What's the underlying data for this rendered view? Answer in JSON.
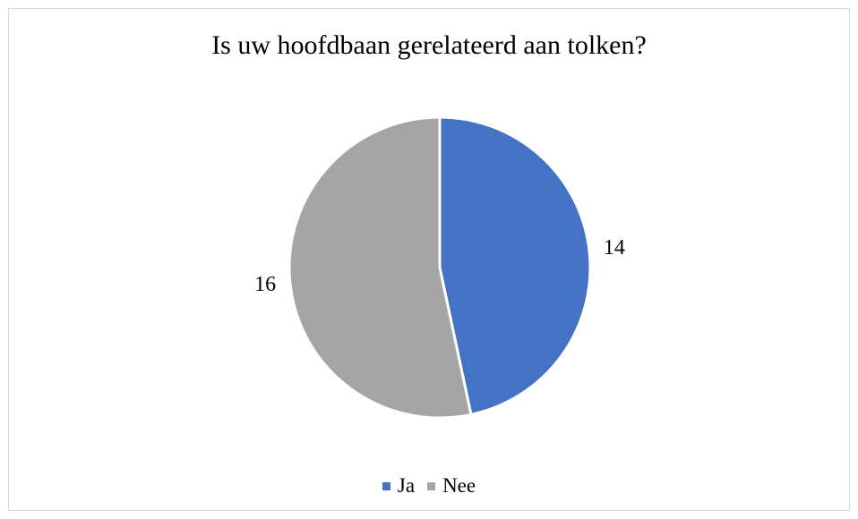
{
  "chart_data": {
    "type": "pie",
    "title": "Is uw hoofdbaan gerelateerd aan tolken?",
    "categories": [
      "Ja",
      "Nee"
    ],
    "values": [
      14,
      16
    ],
    "colors": [
      "#4472c4",
      "#a5a5a5"
    ],
    "data_labels": [
      "14",
      "16"
    ],
    "legend_position": "bottom"
  }
}
